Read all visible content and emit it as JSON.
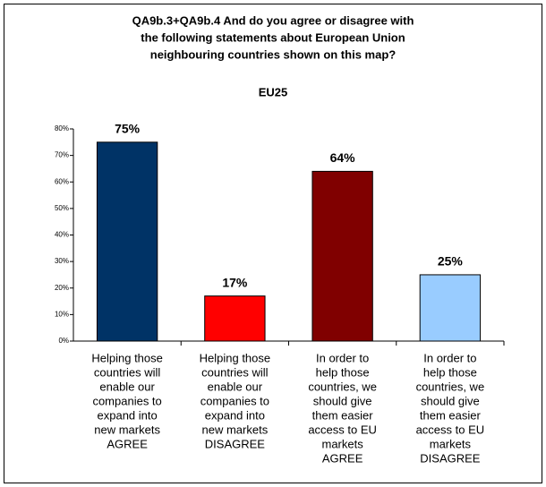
{
  "chart_data": {
    "type": "bar",
    "title": [
      "QA9b.3+QA9b.4 And do you agree or disagree with",
      "the following statements about European Union",
      "neighbouring countries shown on this map?"
    ],
    "subtitle": "EU25",
    "categories": [
      [
        "Helping those",
        "countries will",
        "enable our",
        "companies to",
        "expand into",
        "new markets",
        "AGREE"
      ],
      [
        "Helping those",
        "countries will",
        "enable our",
        "companies to",
        "expand into",
        "new markets",
        "DISAGREE"
      ],
      [
        "In order to",
        "help those",
        "countries, we",
        "should give",
        "them easier",
        "access to EU",
        "markets",
        "AGREE"
      ],
      [
        "In order to",
        "help those",
        "countries, we",
        "should give",
        "them easier",
        "access to EU",
        "markets",
        "DISAGREE"
      ]
    ],
    "values": [
      75,
      17,
      64,
      25
    ],
    "value_labels": [
      "75%",
      "17%",
      "64%",
      "25%"
    ],
    "colors": [
      "#003366",
      "#ff0000",
      "#800000",
      "#99ccff"
    ],
    "ylim": [
      0,
      80
    ],
    "yticks": [
      {
        "value": 0,
        "label": "0%"
      },
      {
        "value": 10,
        "label": "10%"
      },
      {
        "value": 20,
        "label": "20%"
      },
      {
        "value": 30,
        "label": "30%"
      },
      {
        "value": 40,
        "label": "40%"
      },
      {
        "value": 50,
        "label": "50%"
      },
      {
        "value": 60,
        "label": "60%"
      },
      {
        "value": 70,
        "label": "70%"
      },
      {
        "value": 80,
        "label": "80%"
      }
    ]
  }
}
